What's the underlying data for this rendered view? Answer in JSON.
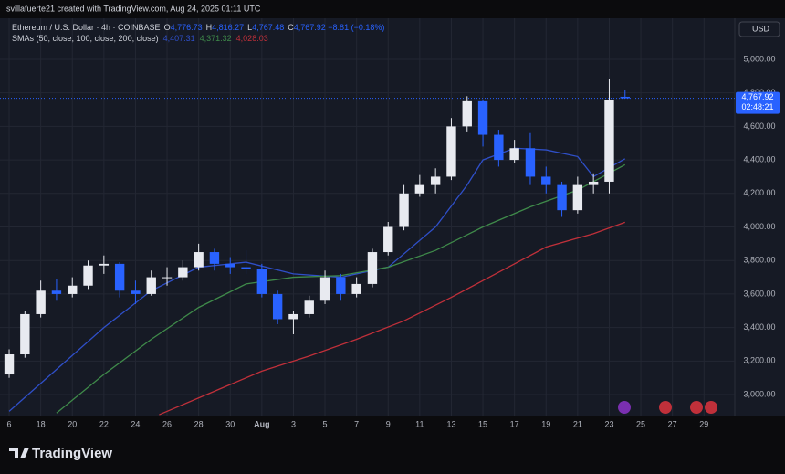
{
  "header": {
    "credit": "svillafuerte21 created with TradingView.com, Aug 24, 2025 01:11 UTC",
    "brand": "TradingView"
  },
  "chart_data": {
    "type": "candlestick",
    "legend": {
      "symbol": "Ethereum / U.S. Dollar · 4h · COINBASE",
      "letters": [
        "O",
        "H",
        "L",
        "C"
      ],
      "value_labels": [
        "4,776.73",
        "4,816.27",
        "4,767.48",
        "4,767.92"
      ],
      "change": "−8.81 (−0.18%)",
      "sma_title": "SMAs (50, close, 100, close, 200, close)"
    },
    "currency": "USD",
    "price_label": "4,767.92",
    "countdown": "02:48:21",
    "up_color": "#e8eaf0",
    "down_color": "#2962ff",
    "x": [
      0,
      1,
      2,
      3,
      4,
      5,
      6,
      7,
      8,
      9,
      10,
      11,
      12,
      13,
      14,
      15,
      16,
      17,
      18,
      19,
      20,
      21,
      22,
      23,
      24,
      25,
      26,
      27,
      28,
      29,
      30,
      31,
      32,
      33,
      34,
      35,
      36,
      37,
      38,
      39
    ],
    "open": [
      3120,
      3240,
      3480,
      3620,
      3600,
      3650,
      3770,
      3780,
      3620,
      3600,
      3700,
      3700,
      3760,
      3850,
      3780,
      3760,
      3750,
      3600,
      3450,
      3480,
      3560,
      3700,
      3600,
      3660,
      3850,
      4000,
      4200,
      4250,
      4300,
      4600,
      4750,
      4550,
      4400,
      4470,
      4300,
      4250,
      4100,
      4250,
      4270,
      4776.73
    ],
    "high": [
      3270,
      3500,
      3680,
      3690,
      3700,
      3800,
      3830,
      3790,
      3680,
      3740,
      3760,
      3800,
      3900,
      3870,
      3820,
      3860,
      3780,
      3620,
      3500,
      3590,
      3740,
      3720,
      3700,
      3870,
      4030,
      4250,
      4310,
      4350,
      4650,
      4780,
      4760,
      4580,
      4520,
      4560,
      4360,
      4270,
      4300,
      4320,
      4880,
      4816.27
    ],
    "low": [
      3100,
      3220,
      3460,
      3560,
      3580,
      3630,
      3720,
      3580,
      3540,
      3590,
      3650,
      3680,
      3740,
      3740,
      3720,
      3720,
      3580,
      3420,
      3360,
      3460,
      3540,
      3560,
      3580,
      3640,
      3830,
      3980,
      4180,
      4200,
      4280,
      4570,
      4480,
      4360,
      4380,
      4250,
      4200,
      4060,
      4080,
      4200,
      4200,
      4767.48
    ],
    "close": [
      3240,
      3480,
      3620,
      3600,
      3650,
      3770,
      3780,
      3620,
      3600,
      3700,
      3700,
      3760,
      3850,
      3780,
      3760,
      3750,
      3600,
      3450,
      3480,
      3560,
      3700,
      3600,
      3660,
      3850,
      4000,
      4200,
      4250,
      4300,
      4600,
      4750,
      4550,
      4400,
      4470,
      4300,
      4250,
      4100,
      4250,
      4270,
      4760,
      4767.92
    ],
    "series": [
      {
        "color": "#2f4fc8",
        "x": [
          0,
          3,
          6,
          9,
          12,
          15,
          18,
          21,
          24,
          27,
          29,
          30,
          32,
          34,
          36,
          37,
          39
        ],
        "values": [
          2900,
          3150,
          3400,
          3620,
          3760,
          3790,
          3720,
          3700,
          3760,
          4000,
          4250,
          4400,
          4470,
          4460,
          4420,
          4300,
          4407.31
        ],
        "last_label": "4,407.31"
      },
      {
        "color": "#3f8a4a",
        "x": [
          3,
          6,
          9,
          12,
          15,
          18,
          21,
          24,
          27,
          30,
          33,
          36,
          39
        ],
        "values": [
          2890,
          3120,
          3330,
          3520,
          3660,
          3700,
          3710,
          3760,
          3860,
          4000,
          4120,
          4220,
          4371.32
        ],
        "last_label": "4,371.32"
      },
      {
        "color": "#c0303a",
        "x": [
          9.5,
          13,
          16,
          19,
          22,
          25,
          28,
          31,
          34,
          37,
          39
        ],
        "values": [
          2880,
          3020,
          3140,
          3230,
          3330,
          3440,
          3580,
          3730,
          3880,
          3960,
          4028.03
        ],
        "last_label": "4,028.03"
      }
    ],
    "xlim": [
      -0.58,
      45.95
    ],
    "ylim": [
      2875,
      5245
    ],
    "xticks": [
      {
        "value": 0,
        "label": "6"
      },
      {
        "value": 2,
        "label": "18"
      },
      {
        "value": 4,
        "label": "20"
      },
      {
        "value": 6,
        "label": "22"
      },
      {
        "value": 8,
        "label": "24"
      },
      {
        "value": 10,
        "label": "26"
      },
      {
        "value": 12,
        "label": "28"
      },
      {
        "value": 14,
        "label": "30"
      },
      {
        "value": 16,
        "label": "Aug"
      },
      {
        "value": 18,
        "label": "3"
      },
      {
        "value": 20,
        "label": "5"
      },
      {
        "value": 22,
        "label": "7"
      },
      {
        "value": 24,
        "label": "9"
      },
      {
        "value": 26,
        "label": "11"
      },
      {
        "value": 28,
        "label": "13"
      },
      {
        "value": 30,
        "label": "15"
      },
      {
        "value": 32,
        "label": "17"
      },
      {
        "value": 34,
        "label": "19"
      },
      {
        "value": 36,
        "label": "21"
      },
      {
        "value": 38,
        "label": "23"
      },
      {
        "value": 40,
        "label": "25"
      },
      {
        "value": 42,
        "label": "27"
      },
      {
        "value": 44,
        "label": "29"
      }
    ],
    "yticks": [
      {
        "value": 3000,
        "label": "3,000.00"
      },
      {
        "value": 3200,
        "label": "3,200.00"
      },
      {
        "value": 3400,
        "label": "3,400.00"
      },
      {
        "value": 3600,
        "label": "3,600.00"
      },
      {
        "value": 3800,
        "label": "3,800.00"
      },
      {
        "value": 4000,
        "label": "4,000.00"
      },
      {
        "value": 4200,
        "label": "4,200.00"
      },
      {
        "value": 4400,
        "label": "4,400.00"
      },
      {
        "value": 4600,
        "label": "4,600.00"
      },
      {
        "value": 4800,
        "label": "4,800.00"
      },
      {
        "value": 5000,
        "label": "5,000.00"
      }
    ],
    "grid": true
  }
}
